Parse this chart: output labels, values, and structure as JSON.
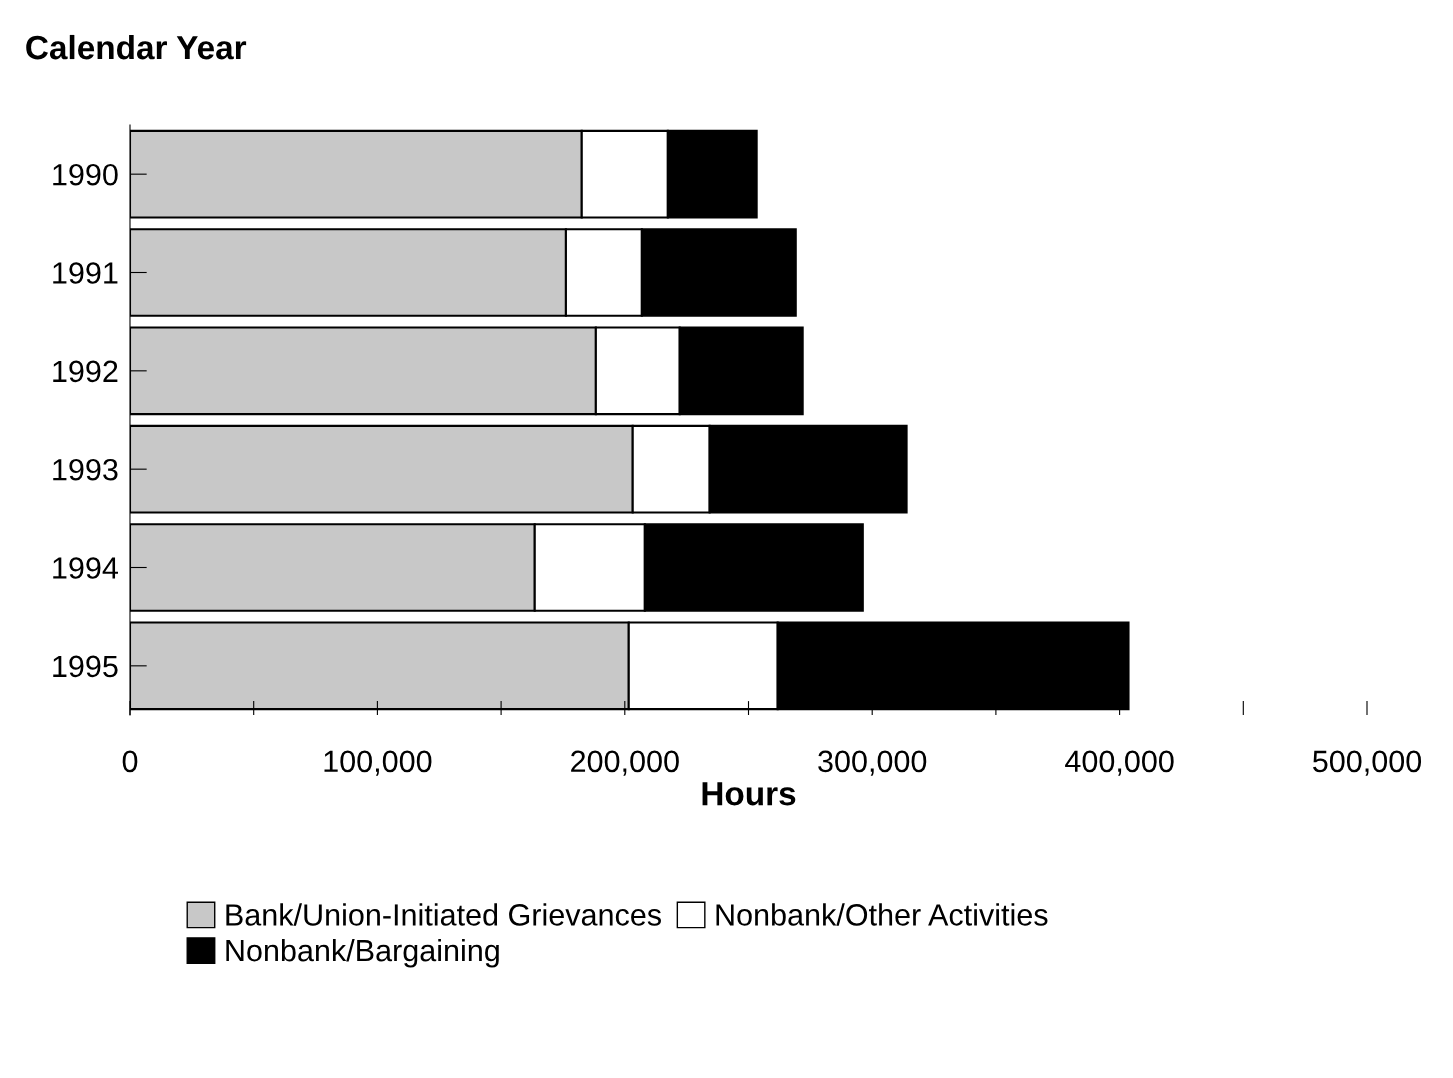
{
  "chart_data": {
    "type": "bar",
    "orientation": "horizontal",
    "stacked": true,
    "ylabel": "Calendar Year",
    "xlabel": "Hours",
    "categories": [
      "1990",
      "1991",
      "1992",
      "1993",
      "1994",
      "1995"
    ],
    "series": [
      {
        "name": "Bank/Union-Initiated Grievances",
        "color": "#c8c8c8",
        "values": [
          182600,
          176200,
          188300,
          203200,
          163600,
          201600
        ]
      },
      {
        "name": "Nonbank/Other Activities",
        "color": "#ffffff",
        "values": [
          34800,
          30700,
          33900,
          31100,
          44500,
          60200
        ]
      },
      {
        "name": "Nonbank/Bargaining",
        "color": "#000000",
        "values": [
          35900,
          62200,
          49700,
          79600,
          88100,
          141800
        ]
      }
    ],
    "xlim": [
      0,
      500000
    ],
    "xticks": [
      0,
      {
        "value": 50000,
        "label": null
      },
      {
        "value": 100000,
        "label": "100,000"
      },
      {
        "value": 150000,
        "label": null
      },
      {
        "value": 200000,
        "label": "200,000"
      },
      {
        "value": 250000,
        "label": null
      },
      {
        "value": 300000,
        "label": "300,000"
      },
      {
        "value": 350000,
        "label": null
      },
      {
        "value": 400000,
        "label": "400,000"
      },
      {
        "value": 450000,
        "label": null
      },
      {
        "value": 500000,
        "label": "500,000"
      }
    ],
    "grid": false,
    "legend": "bottom"
  }
}
